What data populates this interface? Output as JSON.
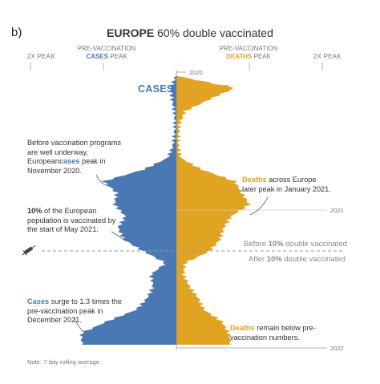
{
  "panel_label": "b)",
  "title": {
    "bold": "EUROPE",
    "rest": " 60% double vaccinated"
  },
  "top_labels": {
    "left_2x": "2X PEAK",
    "left_pre_top": "PRE-VACCINATION",
    "left_pre_bottom": "CASES",
    "left_pre_suffix": " PEAK",
    "right_pre_top": "PRE-VACCINATION",
    "right_pre_bottom": "DEATHS",
    "right_pre_suffix": " PEAK",
    "right_2x": "2X PEAK"
  },
  "side_headers": {
    "cases": "CASES",
    "deaths": "DEATHS"
  },
  "years": {
    "y2020": "2020",
    "y2021": "2021",
    "y2022": "2022"
  },
  "vax_line": {
    "before_pre": "Before ",
    "pct": "10%",
    "before_post": " double vaccinated",
    "after_pre": "After ",
    "after_post": " double vaccinated"
  },
  "annotations": {
    "a1_pre": "Before vaccination programs are well underway, European",
    "a1_hl": "cases",
    "a1_post": " peak in November 2020.",
    "a2_hl": "10%",
    "a2_post": " of the European population is vaccinated by the start of May 2021.",
    "a3_hl": "Cases",
    "a3_post": " surge to 1.3 times the pre-vaccination peak in December 2021.",
    "a4_hl": "Deaths",
    "a4_post": " across Europe later peak in January 2021.",
    "a5_hl": "Deaths",
    "a5_post": " remain below pre-vaccination numbers."
  },
  "note": "Note: 7-day rolling average",
  "colors": {
    "cases": "#4a78b2",
    "deaths": "#e0a322",
    "axis": "#9a9a9a"
  },
  "chart_data": {
    "type": "area",
    "orientation": "vertical-mirrored",
    "time_unit": "month",
    "t": [
      "2020-02",
      "2020-03",
      "2020-04",
      "2020-05",
      "2020-06",
      "2020-07",
      "2020-08",
      "2020-09",
      "2020-10",
      "2020-11",
      "2020-12",
      "2021-01",
      "2021-02",
      "2021-03",
      "2021-04",
      "2021-05",
      "2021-06",
      "2021-07",
      "2021-08",
      "2021-09",
      "2021-10",
      "2021-11",
      "2021-12",
      "2022-01"
    ],
    "cases_relative_to_prevax_peak": [
      0.01,
      0.08,
      0.06,
      0.03,
      0.02,
      0.03,
      0.05,
      0.12,
      0.45,
      1.0,
      0.82,
      0.85,
      0.7,
      0.8,
      0.72,
      0.45,
      0.15,
      0.35,
      0.32,
      0.4,
      0.55,
      0.95,
      1.3,
      1.3
    ],
    "deaths_relative_to_prevax_peak": [
      0.02,
      0.8,
      0.45,
      0.12,
      0.05,
      0.03,
      0.03,
      0.06,
      0.35,
      0.8,
      0.9,
      1.0,
      0.75,
      0.65,
      0.6,
      0.45,
      0.12,
      0.1,
      0.18,
      0.3,
      0.38,
      0.62,
      0.72,
      0.75
    ],
    "x_scale_labels": [
      "2X PEAK",
      "PRE-VACCINATION PEAK",
      "2X PEAK"
    ],
    "milestone": {
      "label": "10% double vaccinated",
      "date": "2021-05"
    }
  }
}
